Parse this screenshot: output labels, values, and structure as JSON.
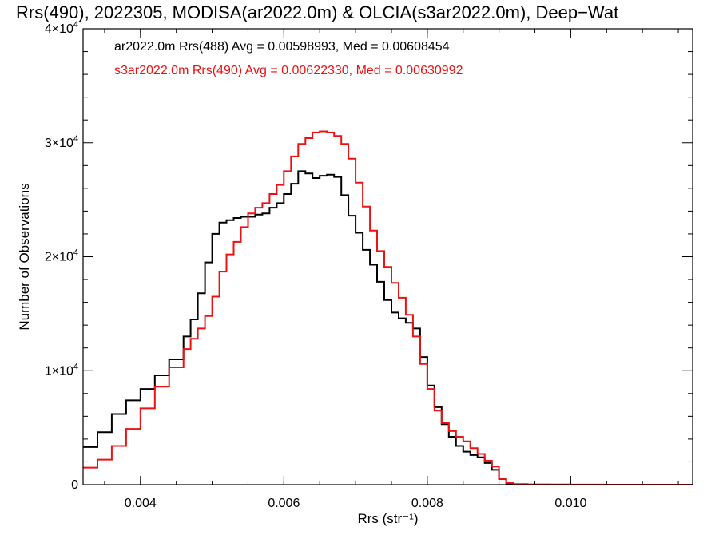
{
  "chart_data": {
    "type": "line",
    "title": "Rrs(490), 2022305, MODISA(ar2022.0m) & OLCIA(s3ar2022.0m), Deep−Wat",
    "xlabel": "Rrs (str⁻¹)",
    "ylabel": "Number of Observations",
    "xlim": [
      0.0032,
      0.0117
    ],
    "ylim": [
      0,
      40000
    ],
    "x_ticks": [
      {
        "value": 0.004,
        "label": "0.004"
      },
      {
        "value": 0.006,
        "label": "0.006"
      },
      {
        "value": 0.008,
        "label": "0.008"
      },
      {
        "value": 0.01,
        "label": "0.010"
      }
    ],
    "x_minor_step": 0.0005,
    "y_ticks": [
      {
        "value": 0,
        "mantissa": "0",
        "exponent": ""
      },
      {
        "value": 10000,
        "mantissa": "1×10",
        "exponent": "4"
      },
      {
        "value": 20000,
        "mantissa": "2×10",
        "exponent": "4"
      },
      {
        "value": 30000,
        "mantissa": "3×10",
        "exponent": "4"
      },
      {
        "value": 40000,
        "mantissa": "4×10",
        "exponent": "4"
      }
    ],
    "y_minor_step": 2000,
    "grid": false,
    "step_style": true,
    "series": [
      {
        "name": "ar2022.0m Rrs(488)",
        "legend": "ar2022.0m Rrs(488) Avg = 0.00598993, Med = 0.00608454",
        "color": "#000000",
        "x": [
          0.0032,
          0.0034,
          0.0036,
          0.0038,
          0.004,
          0.0042,
          0.0044,
          0.0046,
          0.0047,
          0.0048,
          0.0049,
          0.005,
          0.0051,
          0.0052,
          0.0053,
          0.0054,
          0.0055,
          0.0056,
          0.0057,
          0.0058,
          0.0059,
          0.006,
          0.0061,
          0.0062,
          0.0063,
          0.0064,
          0.0065,
          0.0066,
          0.0067,
          0.0068,
          0.0069,
          0.007,
          0.0071,
          0.0072,
          0.0073,
          0.0074,
          0.0075,
          0.0076,
          0.0077,
          0.0078,
          0.0079,
          0.008,
          0.0081,
          0.0082,
          0.0083,
          0.0084,
          0.0085,
          0.0086,
          0.0087,
          0.0088,
          0.0089,
          0.009,
          0.0091,
          0.0092,
          0.0094,
          0.0097,
          0.01,
          0.0105,
          0.011,
          0.0117
        ],
        "y": [
          3300,
          4600,
          6200,
          7400,
          8400,
          9600,
          11000,
          13000,
          14500,
          16800,
          19500,
          22000,
          23000,
          23200,
          23400,
          23500,
          23500,
          23700,
          23800,
          24300,
          24700,
          25500,
          26400,
          27500,
          27300,
          26900,
          27100,
          27200,
          27000,
          25400,
          23600,
          22100,
          20600,
          19300,
          17800,
          16200,
          15100,
          14600,
          14200,
          13700,
          11200,
          8700,
          6800,
          5300,
          4200,
          3400,
          2900,
          2600,
          2400,
          1900,
          1300,
          500,
          100,
          30,
          10,
          5,
          2,
          0,
          0,
          0
        ]
      },
      {
        "name": "s3ar2022.0m Rrs(490)",
        "legend": "s3ar2022.0m Rrs(490) Avg = 0.00622330, Med = 0.00630992",
        "color": "#ee1111",
        "x": [
          0.0032,
          0.0034,
          0.0036,
          0.0038,
          0.004,
          0.0042,
          0.0044,
          0.0046,
          0.0047,
          0.0048,
          0.0049,
          0.005,
          0.0051,
          0.0052,
          0.0053,
          0.0054,
          0.0055,
          0.0056,
          0.0057,
          0.0058,
          0.0059,
          0.006,
          0.0061,
          0.0062,
          0.0063,
          0.0064,
          0.0065,
          0.0066,
          0.0067,
          0.0068,
          0.0069,
          0.007,
          0.0071,
          0.0072,
          0.0073,
          0.0074,
          0.0075,
          0.0076,
          0.0077,
          0.0078,
          0.0079,
          0.008,
          0.0081,
          0.0082,
          0.0083,
          0.0084,
          0.0085,
          0.0086,
          0.0087,
          0.0088,
          0.0089,
          0.009,
          0.0091,
          0.0092,
          0.0094,
          0.0097,
          0.01,
          0.0105,
          0.011,
          0.0117
        ],
        "y": [
          1500,
          2200,
          3400,
          4900,
          6700,
          8600,
          10300,
          11900,
          12800,
          13700,
          14800,
          16500,
          18700,
          20200,
          21300,
          22600,
          23800,
          24300,
          24700,
          25500,
          26300,
          27500,
          28800,
          29900,
          30400,
          30900,
          31000,
          30900,
          30600,
          29900,
          28600,
          26500,
          24400,
          22300,
          20500,
          19100,
          17700,
          16400,
          14900,
          13000,
          10600,
          8400,
          6500,
          5400,
          4700,
          4200,
          3800,
          3200,
          2700,
          2100,
          1600,
          500,
          150,
          50,
          20,
          10,
          5,
          2,
          0,
          0
        ]
      }
    ]
  }
}
